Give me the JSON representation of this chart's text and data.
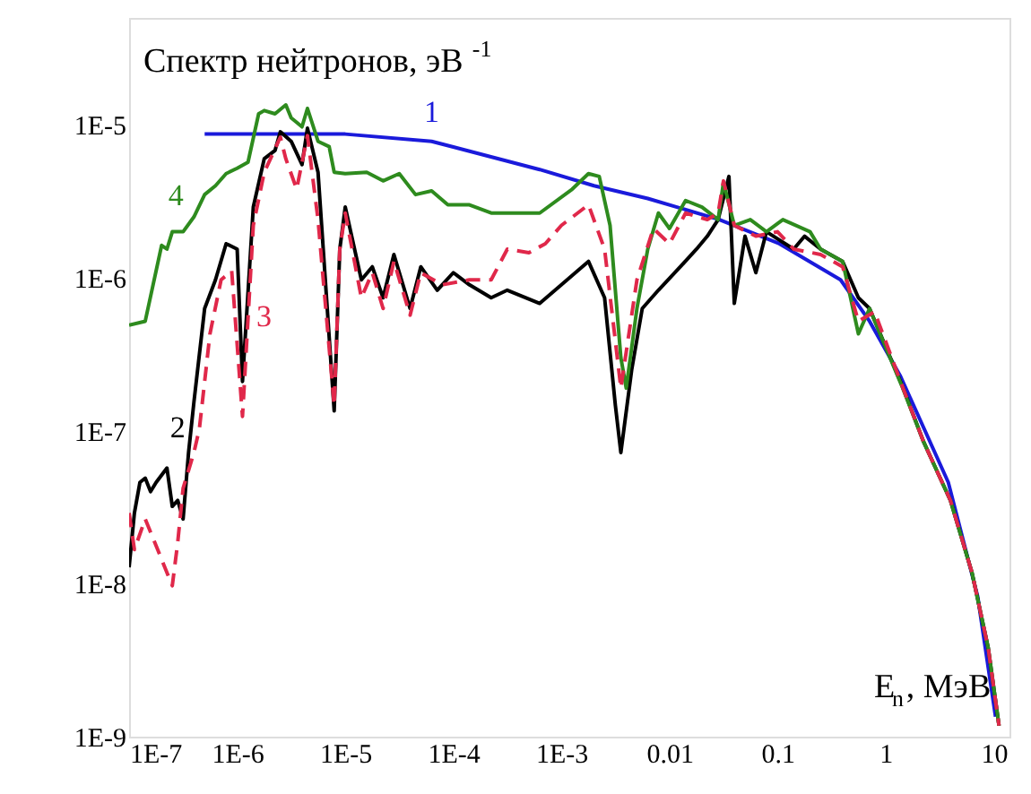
{
  "chart_data": {
    "type": "line",
    "xlabel": "E$_{n}$, МэВ",
    "ylabel": "Спектр нейтронов, эВ$^{-1}$",
    "log": "xy",
    "grid": false,
    "xlim": [
      1e-07,
      14
    ],
    "ylim": [
      1e-09,
      5e-05
    ],
    "xticks": [
      {
        "value": 1e-07,
        "label": "1E-7"
      },
      {
        "value": 1e-06,
        "label": "1E-6"
      },
      {
        "value": 1e-05,
        "label": "1E-5"
      },
      {
        "value": 0.0001,
        "label": "1E-4"
      },
      {
        "value": 0.001,
        "label": "1E-3"
      },
      0.01,
      0.1,
      1,
      10
    ],
    "yticks": [
      {
        "value": 1e-09,
        "label": "1E-9"
      },
      {
        "value": 1e-08,
        "label": "1E-8"
      },
      {
        "value": 1e-07,
        "label": "1E-7"
      },
      {
        "value": 1e-06,
        "label": "1E-6"
      },
      {
        "value": 1e-05,
        "label": "1E-5"
      }
    ],
    "series": [
      {
        "name": "1",
        "color": "#1a1adb",
        "line_style": "solid",
        "x": [
          5e-07,
          1e-05,
          6.3e-05,
          0.00063,
          0.002,
          0.0063,
          0.029,
          0.104,
          0.383,
          0.71,
          1.36,
          3.8,
          7.1,
          10.4
        ],
        "values": [
          8.7e-06,
          8.7e-06,
          7.8e-06,
          5.1e-06,
          4e-06,
          3.3e-06,
          2.4e-06,
          1.67e-06,
          9.7e-07,
          5.2e-07,
          2.3e-07,
          4.6e-08,
          8.3e-09,
          1.35e-09
        ]
      },
      {
        "name": "2",
        "color": "#000000",
        "line_style": "solid",
        "x": [
          1e-07,
          1.12e-07,
          1.26e-07,
          1.41e-07,
          1.58e-07,
          1.78e-07,
          2.24e-07,
          2.51e-07,
          2.82e-07,
          3.16e-07,
          3.55e-07,
          3.98e-07,
          5e-07,
          6.3e-07,
          7.9e-07,
          1e-06,
          1.12e-06,
          1.41e-06,
          1.78e-06,
          2.24e-06,
          2.51e-06,
          3.16e-06,
          3.98e-06,
          4.47e-06,
          5.6e-06,
          7.9e-06,
          8.9e-06,
          1e-05,
          1.41e-05,
          1.78e-05,
          2.24e-05,
          2.82e-05,
          3.98e-05,
          5e-05,
          7.1e-05,
          0.0001,
          0.000141,
          0.000224,
          0.000316,
          0.00063,
          0.001,
          0.00178,
          0.00251,
          0.00316,
          0.00355,
          0.00447,
          0.0056,
          0.0079,
          0.0126,
          0.0178,
          0.0224,
          0.0282,
          0.0355,
          0.0398,
          0.05,
          0.063,
          0.079,
          0.141,
          0.178,
          0.25,
          0.4,
          0.56,
          0.71,
          1.41,
          2.24,
          3.98,
          6.3,
          8.9,
          11.2
        ],
        "values": [
          1.28e-08,
          2.9e-08,
          4.6e-08,
          4.9e-08,
          4e-08,
          4.6e-08,
          5.7e-08,
          3.2e-08,
          3.5e-08,
          2.65e-08,
          7.2e-08,
          1.54e-07,
          6.3e-07,
          9.7e-07,
          1.67e-06,
          1.54e-06,
          2.1e-07,
          2.9e-06,
          6e-06,
          6.8e-06,
          9e-06,
          7.8e-06,
          5.5e-06,
          9.5e-06,
          4.9e-06,
          1.35e-07,
          1.54e-06,
          2.9e-06,
          9.7e-07,
          1.18e-06,
          7.4e-07,
          1.42e-06,
          6.3e-07,
          1.18e-06,
          8.3e-07,
          1.08e-06,
          9e-07,
          7.4e-07,
          8.3e-07,
          6.8e-07,
          9e-07,
          1.28e-06,
          7.4e-07,
          1.46e-07,
          7.2e-08,
          2.5e-07,
          6.3e-07,
          8.3e-07,
          1.18e-06,
          1.54e-06,
          1.87e-06,
          2.4e-06,
          4.6e-06,
          6.8e-07,
          1.87e-06,
          1.08e-06,
          2e-06,
          1.54e-06,
          1.87e-06,
          1.54e-06,
          1.28e-06,
          7.4e-07,
          6.3e-07,
          2e-07,
          8.5e-08,
          3.5e-08,
          1.18e-08,
          3.8e-09,
          1.18e-09
        ]
      },
      {
        "name": "3",
        "color": "#e0284a",
        "line_style": "dashed",
        "x": [
          1e-07,
          1.12e-07,
          1.41e-07,
          2.51e-07,
          2.82e-07,
          3.16e-07,
          3.98e-07,
          4.47e-07,
          5.6e-07,
          7.1e-07,
          8.9e-07,
          1.12e-06,
          1.41e-06,
          1.78e-06,
          2.51e-06,
          2.82e-06,
          3.55e-06,
          4.47e-06,
          5.6e-06,
          7.9e-06,
          8.9e-06,
          1e-05,
          1.41e-05,
          1.78e-05,
          2.24e-05,
          2.82e-05,
          3.98e-05,
          5e-05,
          7.9e-05,
          0.000141,
          0.000224,
          0.000316,
          0.0005,
          0.00071,
          0.001,
          0.00178,
          0.00251,
          0.00355,
          0.005,
          0.0071,
          0.01,
          0.0141,
          0.0224,
          0.0282,
          0.0316,
          0.0398,
          0.063,
          0.1,
          0.141,
          0.25,
          0.4,
          0.56,
          0.79,
          1.41,
          2.24,
          3.98,
          6.3,
          8.9,
          11.2
        ],
        "values": [
          2.9e-08,
          1.67e-08,
          2.65e-08,
          9.7e-09,
          1.87e-08,
          4.2e-08,
          7.2e-08,
          1.03e-07,
          4.3e-07,
          9.7e-07,
          1.11e-06,
          1.24e-07,
          2.2e-06,
          4.9e-06,
          8.3e-06,
          6e-06,
          3.8e-06,
          8.5e-06,
          2.4e-06,
          1.46e-07,
          1.54e-06,
          2.65e-06,
          7.4e-07,
          1.08e-06,
          6.3e-07,
          1.28e-06,
          5.7e-07,
          1.08e-06,
          9e-07,
          9.7e-07,
          9.7e-07,
          1.54e-06,
          1.46e-06,
          1.67e-06,
          2.2e-06,
          3e-06,
          1.54e-06,
          1.9e-07,
          9.7e-07,
          2.1e-06,
          1.67e-06,
          2.65e-06,
          2.4e-06,
          2.65e-06,
          4.3e-06,
          2.2e-06,
          1.87e-06,
          2e-06,
          1.54e-06,
          1.42e-06,
          1.18e-06,
          5.2e-07,
          6e-07,
          2e-07,
          8.5e-08,
          3.5e-08,
          1.18e-08,
          3.8e-09,
          1.18e-09
        ]
      },
      {
        "name": "4",
        "color": "#2e8b1e",
        "line_style": "solid",
        "x": [
          1e-07,
          1.41e-07,
          2e-07,
          2.24e-07,
          2.51e-07,
          3.16e-07,
          3.98e-07,
          5e-07,
          6.3e-07,
          7.9e-07,
          1e-06,
          1.26e-06,
          1.58e-06,
          1.78e-06,
          2.24e-06,
          2.82e-06,
          3.16e-06,
          3.98e-06,
          4.47e-06,
          5.6e-06,
          7.1e-06,
          7.9e-06,
          1e-05,
          1.58e-05,
          2.24e-05,
          3.16e-05,
          4.47e-05,
          6.3e-05,
          8.9e-05,
          0.000141,
          0.000224,
          0.00063,
          0.00126,
          0.00178,
          0.00224,
          0.00282,
          0.00355,
          0.00398,
          0.005,
          0.0063,
          0.0079,
          0.01,
          0.0141,
          0.02,
          0.0282,
          0.0316,
          0.0398,
          0.056,
          0.079,
          0.112,
          0.2,
          0.25,
          0.4,
          0.56,
          0.71,
          1.41,
          2.24,
          3.98,
          6.3,
          8.9,
          11.2
        ],
        "values": [
          4.9e-07,
          5.2e-07,
          1.63e-06,
          1.54e-06,
          2e-06,
          2e-06,
          2.5e-06,
          3.5e-06,
          4e-06,
          4.8e-06,
          5.2e-06,
          5.7e-06,
          1.18e-05,
          1.24e-05,
          1.18e-05,
          1.35e-05,
          1.11e-05,
          9.7e-06,
          1.28e-05,
          7.8e-06,
          7.2e-06,
          4.9e-06,
          4.8e-06,
          4.9e-06,
          4.3e-06,
          4.8e-06,
          3.5e-06,
          3.7e-06,
          3e-06,
          3e-06,
          2.65e-06,
          2.65e-06,
          3.8e-06,
          4.8e-06,
          4.6e-06,
          2.2e-06,
          3e-07,
          1.9e-07,
          6.3e-07,
          1.54e-06,
          2.65e-06,
          2.1e-06,
          3.2e-06,
          2.9e-06,
          2.4e-06,
          4.2e-06,
          2.2e-06,
          2.4e-06,
          2e-06,
          2.4e-06,
          2e-06,
          1.54e-06,
          1.28e-06,
          4.3e-07,
          6.3e-07,
          1.97e-07,
          8.5e-08,
          3.5e-08,
          1.18e-08,
          3.8e-09,
          1.18e-09
        ]
      }
    ]
  }
}
